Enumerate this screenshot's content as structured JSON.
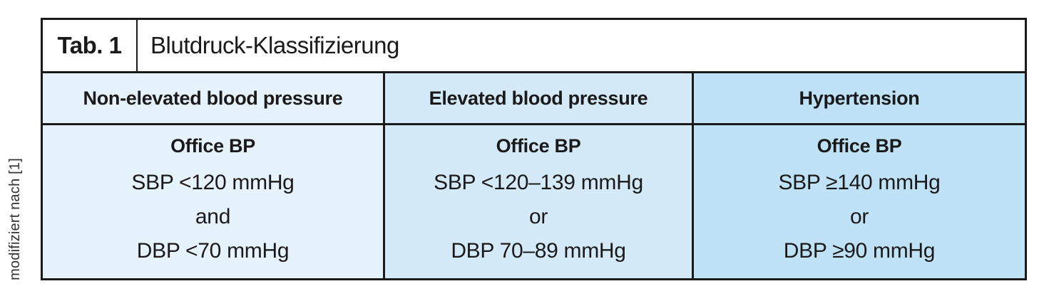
{
  "caption_vertical": "modifiziert nach [1]",
  "table": {
    "title": {
      "tag": "Tab. 1",
      "text": "Blutdruck-Klassifizierung"
    },
    "columns": [
      {
        "header": "Non-elevated blood pressure",
        "subheader": "Office BP",
        "lines": [
          "SBP <120 mmHg",
          "and",
          "DBP <70 mmHg"
        ],
        "bg": "#e6f2fc"
      },
      {
        "header": "Elevated blood pressure",
        "subheader": "Office BP",
        "lines": [
          "SBP <120–139 mmHg",
          "or",
          "DBP 70–89 mmHg"
        ],
        "bg": "#d5eaf9"
      },
      {
        "header": "Hypertension",
        "subheader": "Office BP",
        "lines": [
          "SBP ≥140 mmHg",
          "or",
          "DBP ≥90 mmHg"
        ],
        "bg": "#bfe2f7"
      }
    ],
    "colors": {
      "border": "#1a1a1a",
      "text": "#1a1a1a"
    }
  }
}
